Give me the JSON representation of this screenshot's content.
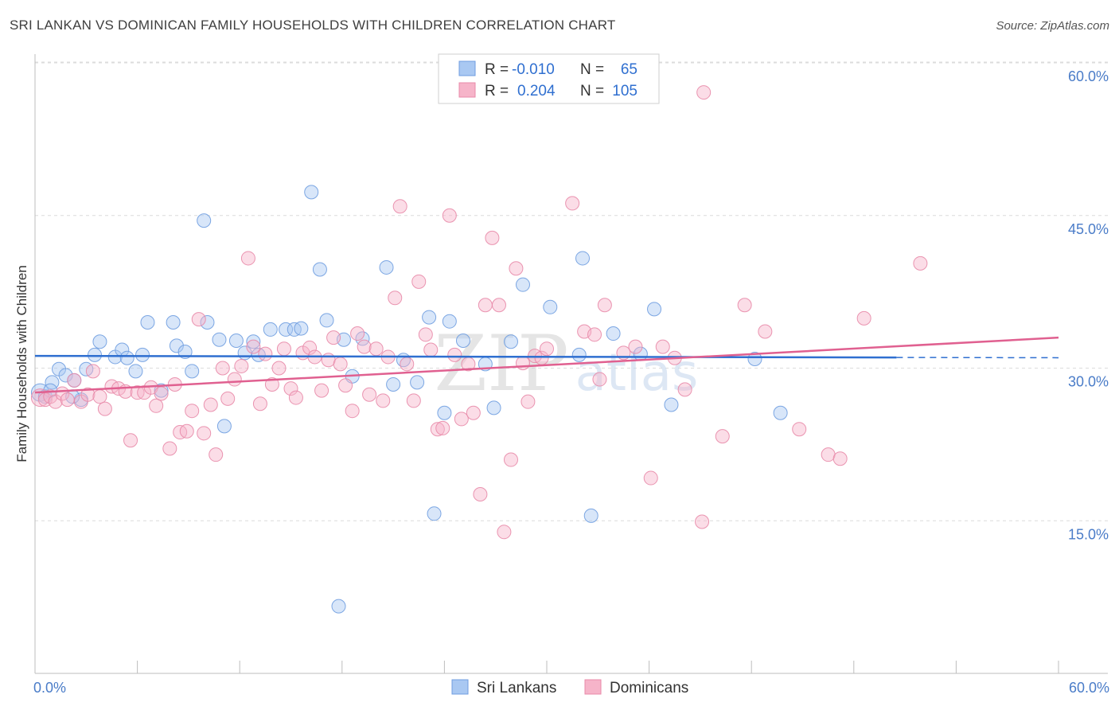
{
  "title": "SRI LANKAN VS DOMINICAN FAMILY HOUSEHOLDS WITH CHILDREN CORRELATION CHART",
  "source": "Source: ZipAtlas.com",
  "watermark": "ZIPatlas",
  "colors": {
    "blue": "#2f6fd0",
    "blue_fill": "#a9c8f2",
    "pink": "#e06090",
    "pink_fill": "#f6b4c9",
    "grid": "#dcdcdc",
    "tick_text": "#4a7cc8"
  },
  "legend": {
    "rows": [
      {
        "r_label": "R =",
        "r_value": "-0.010",
        "n_label": "N =",
        "n_value": "65"
      },
      {
        "r_label": "R =",
        "r_value": "0.204",
        "n_label": "N =",
        "n_value": "105"
      }
    ]
  },
  "bottom_legend": [
    "Sri Lankans",
    "Dominicans"
  ],
  "chart_data": {
    "type": "scatter",
    "title": "SRI LANKAN VS DOMINICAN FAMILY HOUSEHOLDS WITH CHILDREN CORRELATION CHART",
    "xlabel": "",
    "ylabel": "Family Households with Children",
    "xlim": [
      0,
      60
    ],
    "ylim": [
      0,
      60
    ],
    "x_tick_labels": [
      "0.0%",
      "60.0%"
    ],
    "y_tick_labels": [
      "15.0%",
      "30.0%",
      "45.0%",
      "60.0%"
    ],
    "y_ticks": [
      15,
      30,
      45,
      60
    ],
    "grid": true,
    "series": [
      {
        "name": "Sri Lankans",
        "color": "#2f6fd0",
        "points": [
          [
            0.3,
            27.6
          ],
          [
            0.6,
            27.2
          ],
          [
            1.0,
            28.6
          ],
          [
            1.4,
            29.9
          ],
          [
            1.8,
            29.3
          ],
          [
            2.3,
            28.8
          ],
          [
            2.7,
            26.9
          ],
          [
            3.0,
            29.9
          ],
          [
            3.5,
            31.3
          ],
          [
            3.8,
            32.6
          ],
          [
            4.7,
            31.1
          ],
          [
            5.1,
            31.8
          ],
          [
            5.4,
            31.0
          ],
          [
            5.9,
            29.7
          ],
          [
            6.3,
            31.3
          ],
          [
            6.6,
            34.5
          ],
          [
            7.4,
            27.8
          ],
          [
            8.1,
            34.5
          ],
          [
            8.3,
            32.2
          ],
          [
            8.8,
            31.6
          ],
          [
            9.2,
            29.7
          ],
          [
            9.9,
            44.5
          ],
          [
            10.1,
            34.5
          ],
          [
            10.8,
            32.8
          ],
          [
            11.1,
            24.3
          ],
          [
            11.8,
            32.7
          ],
          [
            12.3,
            31.5
          ],
          [
            12.8,
            32.6
          ],
          [
            13.1,
            31.3
          ],
          [
            13.8,
            33.8
          ],
          [
            14.7,
            33.8
          ],
          [
            15.2,
            33.8
          ],
          [
            15.6,
            33.9
          ],
          [
            16.2,
            47.3
          ],
          [
            16.7,
            39.7
          ],
          [
            17.1,
            34.7
          ],
          [
            17.8,
            6.6
          ],
          [
            18.1,
            32.8
          ],
          [
            18.6,
            29.2
          ],
          [
            19.2,
            32.9
          ],
          [
            20.6,
            39.9
          ],
          [
            21.0,
            28.4
          ],
          [
            21.6,
            30.8
          ],
          [
            22.4,
            28.6
          ],
          [
            23.1,
            35.0
          ],
          [
            23.4,
            15.7
          ],
          [
            24.0,
            25.6
          ],
          [
            24.3,
            34.6
          ],
          [
            25.1,
            32.7
          ],
          [
            26.4,
            30.4
          ],
          [
            26.9,
            26.1
          ],
          [
            27.9,
            32.6
          ],
          [
            28.6,
            38.2
          ],
          [
            30.2,
            36.0
          ],
          [
            31.9,
            31.3
          ],
          [
            32.1,
            40.8
          ],
          [
            32.6,
            15.5
          ],
          [
            33.9,
            33.4
          ],
          [
            35.5,
            31.4
          ],
          [
            36.3,
            35.8
          ],
          [
            37.3,
            26.4
          ],
          [
            42.2,
            30.9
          ],
          [
            43.7,
            25.6
          ],
          [
            0.9,
            27.8
          ],
          [
            2.2,
            27.2
          ]
        ]
      },
      {
        "name": "Dominicans",
        "color": "#e06090",
        "points": [
          [
            0.3,
            27.1
          ],
          [
            0.6,
            26.9
          ],
          [
            0.9,
            27.2
          ],
          [
            1.2,
            26.7
          ],
          [
            1.6,
            27.5
          ],
          [
            1.9,
            26.9
          ],
          [
            2.3,
            28.8
          ],
          [
            2.7,
            26.7
          ],
          [
            3.1,
            27.4
          ],
          [
            3.4,
            29.7
          ],
          [
            3.8,
            27.2
          ],
          [
            4.1,
            26.0
          ],
          [
            4.5,
            28.2
          ],
          [
            4.9,
            28.0
          ],
          [
            5.3,
            27.7
          ],
          [
            5.6,
            22.9
          ],
          [
            6.0,
            27.6
          ],
          [
            6.4,
            27.6
          ],
          [
            6.8,
            28.1
          ],
          [
            7.1,
            26.3
          ],
          [
            7.4,
            27.5
          ],
          [
            7.9,
            22.1
          ],
          [
            8.2,
            28.4
          ],
          [
            8.5,
            23.7
          ],
          [
            8.9,
            23.8
          ],
          [
            9.2,
            25.8
          ],
          [
            9.6,
            34.8
          ],
          [
            9.9,
            23.6
          ],
          [
            10.3,
            26.4
          ],
          [
            10.6,
            21.5
          ],
          [
            11.0,
            30.0
          ],
          [
            11.3,
            27.0
          ],
          [
            11.7,
            28.9
          ],
          [
            12.1,
            30.2
          ],
          [
            12.5,
            40.8
          ],
          [
            12.8,
            32.1
          ],
          [
            13.2,
            26.5
          ],
          [
            13.5,
            31.4
          ],
          [
            13.9,
            28.4
          ],
          [
            14.3,
            30.0
          ],
          [
            14.6,
            31.9
          ],
          [
            15.0,
            28.0
          ],
          [
            15.3,
            27.1
          ],
          [
            15.7,
            31.5
          ],
          [
            16.1,
            32.0
          ],
          [
            16.4,
            31.1
          ],
          [
            16.8,
            27.8
          ],
          [
            17.2,
            30.8
          ],
          [
            17.5,
            33.0
          ],
          [
            17.9,
            30.4
          ],
          [
            18.2,
            28.3
          ],
          [
            18.6,
            25.8
          ],
          [
            18.9,
            33.4
          ],
          [
            19.3,
            32.1
          ],
          [
            19.6,
            27.4
          ],
          [
            20.0,
            31.9
          ],
          [
            20.4,
            26.8
          ],
          [
            20.7,
            31.1
          ],
          [
            21.1,
            36.9
          ],
          [
            21.4,
            45.9
          ],
          [
            21.8,
            30.4
          ],
          [
            22.2,
            26.8
          ],
          [
            22.5,
            38.5
          ],
          [
            22.9,
            33.3
          ],
          [
            23.2,
            31.8
          ],
          [
            23.6,
            24.0
          ],
          [
            23.9,
            24.1
          ],
          [
            24.3,
            45.0
          ],
          [
            24.6,
            31.3
          ],
          [
            25.0,
            25.0
          ],
          [
            25.4,
            30.4
          ],
          [
            25.7,
            25.6
          ],
          [
            26.1,
            17.6
          ],
          [
            26.4,
            36.2
          ],
          [
            26.8,
            42.8
          ],
          [
            27.2,
            36.2
          ],
          [
            27.5,
            13.9
          ],
          [
            27.9,
            21.0
          ],
          [
            28.2,
            39.8
          ],
          [
            28.6,
            30.5
          ],
          [
            28.9,
            26.7
          ],
          [
            29.3,
            31.2
          ],
          [
            29.7,
            31.0
          ],
          [
            30.0,
            31.9
          ],
          [
            31.5,
            46.2
          ],
          [
            32.2,
            33.6
          ],
          [
            32.8,
            33.3
          ],
          [
            33.1,
            28.9
          ],
          [
            33.4,
            36.2
          ],
          [
            34.5,
            31.5
          ],
          [
            35.2,
            32.1
          ],
          [
            36.1,
            19.2
          ],
          [
            36.8,
            32.1
          ],
          [
            37.5,
            31.0
          ],
          [
            38.1,
            27.9
          ],
          [
            39.2,
            57.1
          ],
          [
            40.3,
            23.3
          ],
          [
            41.6,
            36.2
          ],
          [
            42.8,
            33.6
          ],
          [
            44.8,
            24.0
          ],
          [
            46.5,
            21.5
          ],
          [
            47.2,
            21.1
          ],
          [
            48.6,
            34.9
          ],
          [
            51.9,
            40.3
          ],
          [
            39.1,
            14.9
          ]
        ]
      }
    ],
    "trend_lines": [
      {
        "series": "Sri Lankans",
        "x": [
          0,
          50.5
        ],
        "y": [
          31.2,
          31.05
        ],
        "dashed_to_x": 60
      },
      {
        "series": "Dominicans",
        "x": [
          0,
          60
        ],
        "y": [
          27.6,
          33.0
        ]
      }
    ]
  }
}
